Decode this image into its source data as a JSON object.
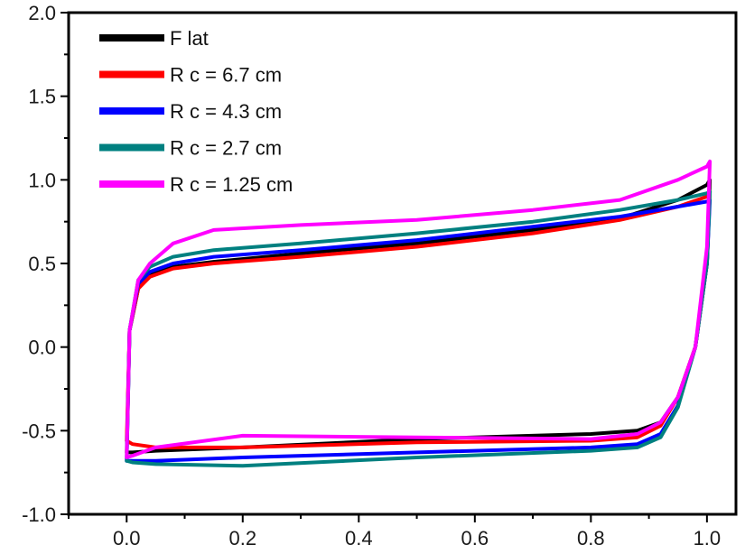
{
  "chart_data": {
    "type": "line",
    "title": "",
    "xlabel": "",
    "ylabel": "",
    "xlim": [
      -0.1,
      1.05
    ],
    "ylim": [
      -1.0,
      2.0
    ],
    "xticks": [
      0.0,
      0.2,
      0.4,
      0.6,
      0.8,
      1.0
    ],
    "xtick_labels": [
      "0.0",
      "0.2",
      "0.4",
      "0.6",
      "0.8",
      "1.0"
    ],
    "yticks": [
      -1.0,
      -0.5,
      0.0,
      0.5,
      1.0,
      1.5,
      2.0
    ],
    "ytick_labels": [
      "-1.0",
      "-0.5",
      "0.0",
      "0.5",
      "1.0",
      "1.5",
      "2.0"
    ],
    "grid": false,
    "legend_position": "top-left",
    "series": [
      {
        "name": "F lat",
        "color": "#000000",
        "x": [
          0.0,
          0.005,
          0.02,
          0.04,
          0.08,
          0.15,
          0.3,
          0.5,
          0.7,
          0.85,
          0.95,
          1.0,
          1.005,
          1.0,
          0.98,
          0.95,
          0.92,
          0.88,
          0.8,
          0.5,
          0.2,
          0.05,
          0.01,
          0.0
        ],
        "y": [
          -0.63,
          0.1,
          0.35,
          0.43,
          0.48,
          0.51,
          0.56,
          0.62,
          0.7,
          0.77,
          0.88,
          0.97,
          1.0,
          0.5,
          0.0,
          -0.3,
          -0.45,
          -0.5,
          -0.52,
          -0.55,
          -0.6,
          -0.62,
          -0.63,
          -0.63
        ]
      },
      {
        "name": "R c = 6.7 cm",
        "color": "#ff0000",
        "x": [
          0.0,
          0.005,
          0.02,
          0.04,
          0.08,
          0.15,
          0.3,
          0.5,
          0.7,
          0.85,
          0.95,
          1.0,
          1.005,
          1.0,
          0.98,
          0.95,
          0.92,
          0.88,
          0.8,
          0.5,
          0.2,
          0.05,
          0.01,
          0.0
        ],
        "y": [
          -0.56,
          0.1,
          0.35,
          0.42,
          0.47,
          0.5,
          0.54,
          0.6,
          0.68,
          0.76,
          0.84,
          0.9,
          0.93,
          0.5,
          0.0,
          -0.3,
          -0.47,
          -0.54,
          -0.56,
          -0.57,
          -0.6,
          -0.6,
          -0.58,
          -0.56
        ]
      },
      {
        "name": "R c = 4.3 cm",
        "color": "#0000ff",
        "x": [
          0.0,
          0.005,
          0.02,
          0.04,
          0.08,
          0.15,
          0.3,
          0.5,
          0.7,
          0.85,
          0.95,
          1.0,
          1.005,
          1.0,
          0.98,
          0.95,
          0.92,
          0.88,
          0.8,
          0.5,
          0.2,
          0.05,
          0.01,
          0.0
        ],
        "y": [
          -0.68,
          0.1,
          0.38,
          0.45,
          0.5,
          0.54,
          0.58,
          0.64,
          0.72,
          0.78,
          0.84,
          0.87,
          0.88,
          0.5,
          0.0,
          -0.35,
          -0.52,
          -0.58,
          -0.6,
          -0.63,
          -0.66,
          -0.68,
          -0.68,
          -0.68
        ]
      },
      {
        "name": "R c = 2.7 cm",
        "color": "#008080",
        "x": [
          0.0,
          0.005,
          0.02,
          0.04,
          0.08,
          0.15,
          0.3,
          0.5,
          0.7,
          0.85,
          0.95,
          1.0,
          1.005,
          1.0,
          0.98,
          0.95,
          0.92,
          0.88,
          0.8,
          0.5,
          0.2,
          0.05,
          0.01,
          0.0
        ],
        "y": [
          -0.68,
          0.1,
          0.4,
          0.48,
          0.54,
          0.58,
          0.62,
          0.68,
          0.75,
          0.82,
          0.88,
          0.92,
          0.93,
          0.5,
          0.0,
          -0.36,
          -0.54,
          -0.6,
          -0.62,
          -0.66,
          -0.71,
          -0.7,
          -0.69,
          -0.68
        ]
      },
      {
        "name": "R c = 1.25 cm",
        "color": "#ff00ff",
        "x": [
          0.0,
          0.005,
          0.02,
          0.04,
          0.08,
          0.15,
          0.3,
          0.5,
          0.7,
          0.85,
          0.95,
          1.0,
          1.005,
          1.0,
          0.98,
          0.95,
          0.92,
          0.88,
          0.8,
          0.5,
          0.2,
          0.05,
          0.01,
          0.0
        ],
        "y": [
          -0.66,
          0.1,
          0.4,
          0.5,
          0.62,
          0.7,
          0.73,
          0.76,
          0.82,
          0.88,
          1.0,
          1.08,
          1.11,
          0.6,
          0.0,
          -0.3,
          -0.45,
          -0.52,
          -0.55,
          -0.54,
          -0.53,
          -0.6,
          -0.65,
          -0.66
        ]
      }
    ]
  }
}
